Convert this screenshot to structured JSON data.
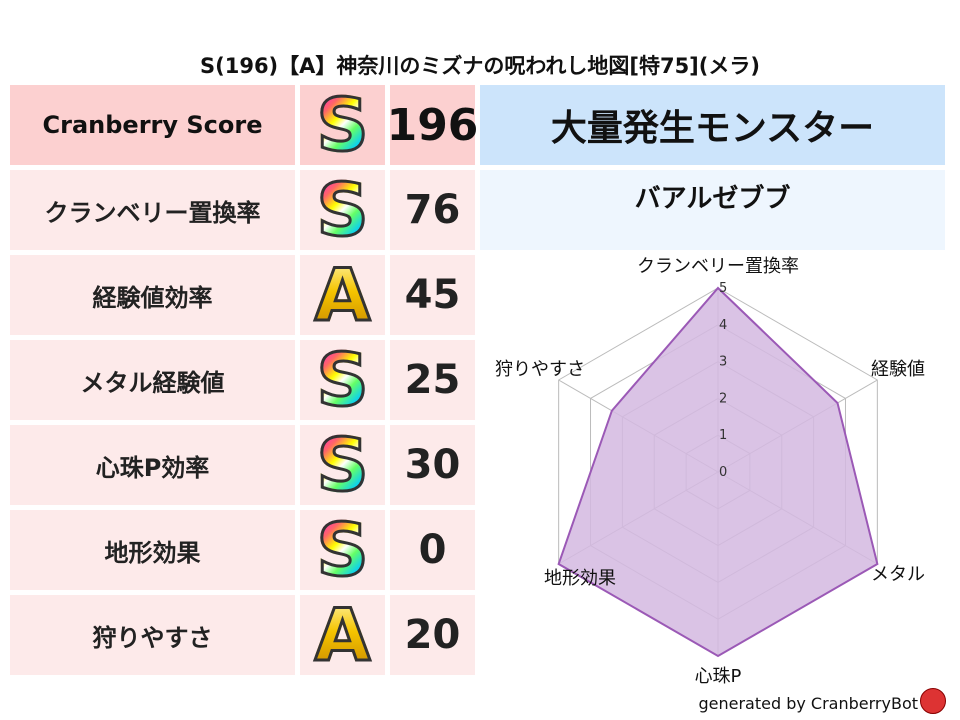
{
  "title": "S(196)【A】神奈川のミズナの呪われし地図[特75](メラ)",
  "score": {
    "label": "Cranberry Score",
    "grade": "S",
    "value": "196"
  },
  "rows": [
    {
      "label": "クランベリー置換率",
      "grade": "S",
      "value": "76"
    },
    {
      "label": "経験値効率",
      "grade": "A",
      "value": "45"
    },
    {
      "label": "メタル経験値",
      "grade": "S",
      "value": "25"
    },
    {
      "label": "心珠P効率",
      "grade": "S",
      "value": "30"
    },
    {
      "label": "地形効果",
      "grade": "S",
      "value": "0"
    },
    {
      "label": "狩りやすさ",
      "grade": "A",
      "value": "20"
    }
  ],
  "monster": {
    "header": "大量発生モンスター",
    "name": "バアルゼブブ"
  },
  "footer": "generated by CranberryBot",
  "chart_data": {
    "type": "radar",
    "axes": [
      "クランベリー置換率",
      "経験値",
      "メタル",
      "心珠P",
      "地形効果",
      "狩りやすさ"
    ],
    "values": [
      5,
      3.75,
      5,
      5,
      5,
      3.33
    ],
    "ticks": [
      "0",
      "1",
      "2",
      "3",
      "4",
      "5"
    ],
    "range": [
      0,
      5
    ],
    "fill_color": "#d4b8e0",
    "line_color": "#9b59b6",
    "grid": true
  }
}
